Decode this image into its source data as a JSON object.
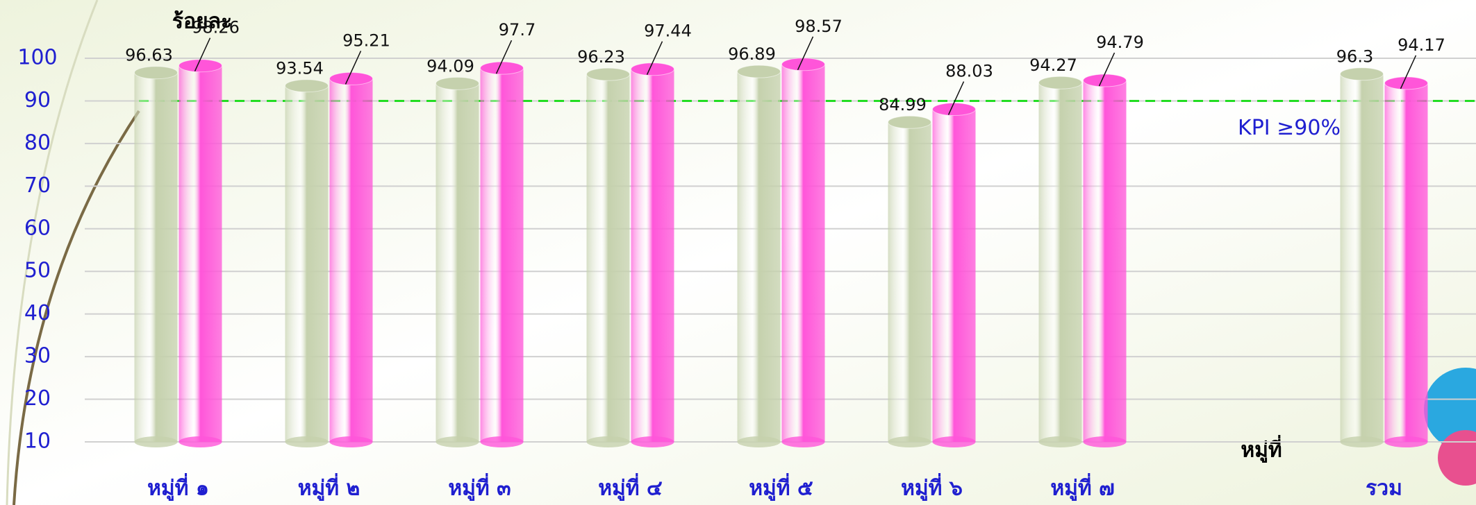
{
  "chart_data": {
    "type": "bar3d",
    "y_label": "ร้อยละ",
    "x_label": "หมู่ที่",
    "categories": [
      "หมู่ที่ ๑",
      "หมู่ที่ ๒",
      "หมู่ที่ ๓",
      "หมู่ที่ ๔",
      "หมู่ที่ ๕",
      "หมู่ที่ ๖",
      "หมู่ที่ ๗",
      null,
      "รวม"
    ],
    "series": [
      {
        "color": "#c5d1ad",
        "values": [
          96.63,
          93.54,
          94.09,
          96.23,
          96.89,
          84.99,
          94.27,
          null,
          96.3
        ]
      },
      {
        "color": "#ff55d9",
        "values": [
          98.26,
          95.21,
          97.7,
          97.44,
          98.57,
          88.03,
          94.79,
          null,
          94.17
        ]
      }
    ],
    "ylim": [
      10,
      100
    ],
    "yticks": [
      10,
      20,
      30,
      40,
      50,
      60,
      70,
      80,
      90,
      100
    ],
    "grid": true,
    "kpi_line": {
      "value": 90,
      "label": "KPI ≥90%",
      "color": "#22dd22"
    }
  }
}
